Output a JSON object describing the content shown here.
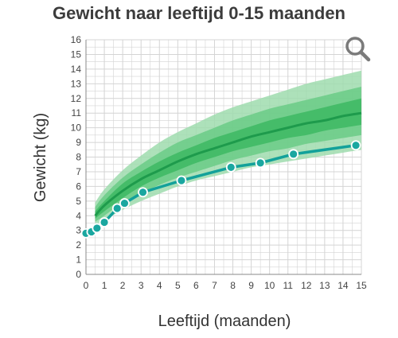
{
  "colors": {
    "outer_band": "#9fdcae",
    "mid_band": "#6acb86",
    "inner_band": "#3db863",
    "median_line": "#1e9b4c",
    "child_line": "#13a19a",
    "point_fill": "#1aa7a0",
    "point_stroke": "#ffffff",
    "grid": "#d4d4d4",
    "zoom_icon": "#7a7a7a"
  },
  "header": {
    "zoom_icon": "magnifier-icon"
  },
  "chart_data": {
    "type": "line",
    "title": "Gewicht naar leeftijd 0-15 maanden",
    "xlabel": "Leeftijd (maanden)",
    "ylabel": "Gewicht (kg)",
    "xlim": [
      0,
      15
    ],
    "ylim": [
      0,
      16
    ],
    "x_ticks": [
      "0",
      "1",
      "2",
      "3",
      "4",
      "5",
      "6",
      "7",
      "8",
      "9",
      "10",
      "11",
      "12",
      "13",
      "14",
      "15"
    ],
    "y_ticks": [
      "0",
      "1",
      "2",
      "3",
      "4",
      "5",
      "6",
      "7",
      "8",
      "9",
      "10",
      "11",
      "12",
      "13",
      "14",
      "15",
      "16"
    ],
    "grid": true,
    "reference_x": [
      0.5,
      1,
      2,
      3,
      4,
      5,
      6,
      7,
      8,
      9,
      10,
      11,
      12,
      13,
      14,
      15
    ],
    "bands": [
      {
        "level": "outer",
        "low": [
          3.3,
          3.7,
          4.4,
          5.0,
          5.5,
          6.0,
          6.4,
          6.7,
          7.0,
          7.3,
          7.5,
          7.7,
          7.9,
          8.1,
          8.3,
          8.5
        ],
        "high": [
          4.9,
          5.8,
          7.1,
          8.1,
          9.0,
          9.7,
          10.3,
          10.9,
          11.4,
          11.8,
          12.2,
          12.6,
          13.0,
          13.3,
          13.6,
          13.9
        ]
      },
      {
        "level": "middle",
        "low": [
          3.6,
          4.0,
          4.9,
          5.5,
          6.1,
          6.6,
          7.0,
          7.4,
          7.8,
          8.1,
          8.4,
          8.6,
          8.9,
          9.1,
          9.3,
          9.5
        ],
        "high": [
          4.6,
          5.4,
          6.6,
          7.5,
          8.3,
          9.0,
          9.5,
          10.0,
          10.5,
          10.9,
          11.3,
          11.6,
          11.9,
          12.2,
          12.5,
          12.8
        ]
      },
      {
        "level": "inner",
        "low": [
          3.8,
          4.3,
          5.2,
          6.0,
          6.6,
          7.1,
          7.6,
          8.0,
          8.4,
          8.7,
          9.0,
          9.3,
          9.5,
          9.8,
          10.0,
          10.2
        ],
        "high": [
          4.3,
          5.0,
          6.2,
          7.0,
          7.7,
          8.3,
          8.8,
          9.3,
          9.7,
          10.1,
          10.5,
          10.8,
          11.1,
          11.4,
          11.7,
          12.0
        ]
      }
    ],
    "median": [
      4.0,
      4.7,
      5.7,
      6.5,
      7.1,
      7.7,
      8.2,
      8.6,
      9.0,
      9.4,
      9.7,
      10.0,
      10.3,
      10.5,
      10.8,
      11.0
    ],
    "series": [
      {
        "x": [
          0,
          0.3,
          0.6,
          1.0,
          1.7,
          2.1,
          3.1,
          5.2,
          7.9,
          9.5,
          11.3,
          14.7
        ],
        "y": [
          2.8,
          2.9,
          3.15,
          3.55,
          4.5,
          4.85,
          5.6,
          6.4,
          7.3,
          7.6,
          8.2,
          8.8
        ]
      }
    ]
  }
}
